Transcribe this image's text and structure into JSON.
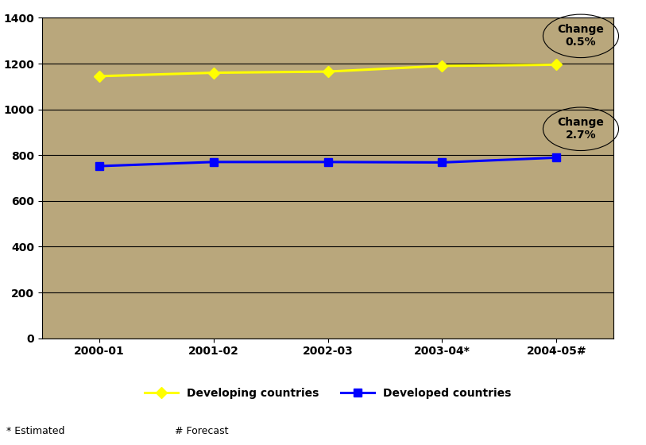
{
  "chart_data": {
    "type": "line",
    "categories": [
      "2000-01",
      "2001-02",
      "2002-03",
      "2003-04*",
      "2004-05#"
    ],
    "series": [
      {
        "name": "Developing countries",
        "color": "#ffff00",
        "marker": "diamond",
        "line_style": "solid",
        "values": [
          1145,
          1160,
          1165,
          1190,
          1195
        ]
      },
      {
        "name": "Developed countries",
        "color": "#0000ff",
        "marker": "square",
        "line_style": "solid",
        "values": [
          752,
          770,
          770,
          768,
          789
        ]
      }
    ],
    "annotations": [
      "Change\n0.5%",
      "Change\n2.7%"
    ],
    "notes": [
      "* Estimated",
      "# Forecast"
    ],
    "ylim": [
      0,
      1400
    ],
    "yticks": [
      0,
      200,
      400,
      600,
      800,
      1000,
      1200,
      1400
    ],
    "grid": true,
    "legend": "lower center"
  }
}
